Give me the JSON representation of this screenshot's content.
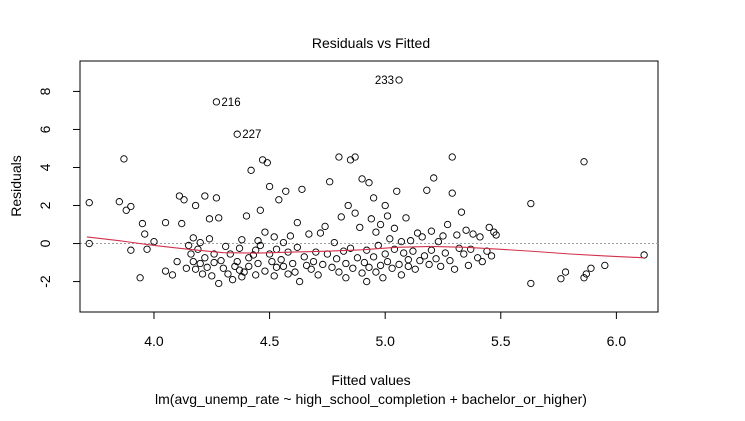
{
  "chart_data": {
    "type": "scatter",
    "title": "Residuals vs Fitted",
    "xlabel": "Fitted values",
    "subtitle": "lm(avg_unemp_rate ~ high_school_completion + bachelor_or_higher)",
    "ylabel": "Residuals",
    "xlim": [
      3.68,
      6.18
    ],
    "ylim": [
      -3.6,
      9.6
    ],
    "x_ticks": [
      4.0,
      4.5,
      5.0,
      5.5,
      6.0
    ],
    "x_tick_labels": [
      "4.0",
      "4.5",
      "5.0",
      "5.5",
      "6.0"
    ],
    "y_ticks": [
      -2,
      0,
      2,
      4,
      6,
      8
    ],
    "y_tick_labels": [
      "-2",
      "0",
      "2",
      "4",
      "6",
      "8"
    ],
    "reference_line": {
      "y": 0,
      "style": "dotted",
      "color": "#a0a0a0"
    },
    "smoother": {
      "color": "#d1314b",
      "x": [
        3.71,
        3.85,
        4.0,
        4.15,
        4.3,
        4.45,
        4.6,
        4.75,
        4.9,
        5.05,
        5.2,
        5.35,
        5.5,
        5.65,
        5.8,
        5.95,
        6.12
      ],
      "y": [
        0.35,
        0.15,
        -0.1,
        -0.3,
        -0.48,
        -0.5,
        -0.45,
        -0.4,
        -0.33,
        -0.2,
        -0.15,
        -0.2,
        -0.3,
        -0.42,
        -0.55,
        -0.65,
        -0.75
      ]
    },
    "annotations": [
      {
        "label": "233",
        "x": 5.06,
        "y": 8.6
      },
      {
        "label": "216",
        "x": 4.27,
        "y": 7.45
      },
      {
        "label": "227",
        "x": 4.36,
        "y": 5.75
      }
    ],
    "points": [
      [
        5.06,
        8.6
      ],
      [
        4.27,
        7.45
      ],
      [
        4.36,
        5.75
      ],
      [
        3.72,
        2.15
      ],
      [
        3.72,
        0.0
      ],
      [
        3.85,
        2.2
      ],
      [
        3.87,
        4.45
      ],
      [
        3.88,
        1.75
      ],
      [
        3.9,
        1.95
      ],
      [
        3.9,
        -0.35
      ],
      [
        3.94,
        -1.8
      ],
      [
        3.95,
        1.05
      ],
      [
        3.96,
        0.5
      ],
      [
        3.97,
        -0.3
      ],
      [
        4.0,
        0.1
      ],
      [
        4.05,
        1.1
      ],
      [
        4.05,
        -1.45
      ],
      [
        4.08,
        -1.65
      ],
      [
        4.1,
        -0.95
      ],
      [
        4.11,
        2.5
      ],
      [
        4.12,
        1.05
      ],
      [
        4.13,
        2.3
      ],
      [
        4.14,
        -1.3
      ],
      [
        4.15,
        -0.1
      ],
      [
        4.16,
        -0.55
      ],
      [
        4.17,
        0.3
      ],
      [
        4.17,
        -0.95
      ],
      [
        4.18,
        2.0
      ],
      [
        4.18,
        -1.35
      ],
      [
        4.19,
        -0.3
      ],
      [
        4.2,
        0.05
      ],
      [
        4.2,
        -1.05
      ],
      [
        4.21,
        -1.6
      ],
      [
        4.22,
        2.5
      ],
      [
        4.22,
        -0.75
      ],
      [
        4.23,
        -1.25
      ],
      [
        4.24,
        1.3
      ],
      [
        4.24,
        0.25
      ],
      [
        4.25,
        -1.7
      ],
      [
        4.26,
        -0.55
      ],
      [
        4.26,
        -1.0
      ],
      [
        4.27,
        2.4
      ],
      [
        4.28,
        -2.1
      ],
      [
        4.28,
        1.35
      ],
      [
        4.29,
        -0.9
      ],
      [
        4.3,
        -1.3
      ],
      [
        4.31,
        -0.15
      ],
      [
        4.32,
        -1.6
      ],
      [
        4.33,
        -0.55
      ],
      [
        4.34,
        -1.9
      ],
      [
        4.35,
        -1.2
      ],
      [
        4.36,
        -0.95
      ],
      [
        4.37,
        -1.4
      ],
      [
        4.37,
        -0.25
      ],
      [
        4.38,
        -1.75
      ],
      [
        4.38,
        0.2
      ],
      [
        4.39,
        -1.5
      ],
      [
        4.4,
        1.45
      ],
      [
        4.41,
        -0.75
      ],
      [
        4.41,
        -1.2
      ],
      [
        4.42,
        3.85
      ],
      [
        4.43,
        -0.6
      ],
      [
        4.44,
        -0.35
      ],
      [
        4.44,
        -1.65
      ],
      [
        4.45,
        -1.05
      ],
      [
        4.45,
        0.15
      ],
      [
        4.46,
        1.75
      ],
      [
        4.46,
        -0.1
      ],
      [
        4.47,
        4.4
      ],
      [
        4.48,
        -1.45
      ],
      [
        4.48,
        0.6
      ],
      [
        4.49,
        4.25
      ],
      [
        4.5,
        3.0
      ],
      [
        4.5,
        -0.55
      ],
      [
        4.51,
        -0.95
      ],
      [
        4.52,
        -1.7
      ],
      [
        4.52,
        0.35
      ],
      [
        4.53,
        -0.3
      ],
      [
        4.53,
        -1.25
      ],
      [
        4.54,
        2.3
      ],
      [
        4.55,
        -0.85
      ],
      [
        4.56,
        -1.2
      ],
      [
        4.56,
        0.05
      ],
      [
        4.57,
        2.75
      ],
      [
        4.58,
        -1.6
      ],
      [
        4.58,
        -0.45
      ],
      [
        4.59,
        0.4
      ],
      [
        4.6,
        -1.05
      ],
      [
        4.61,
        -1.5
      ],
      [
        4.62,
        -0.2
      ],
      [
        4.62,
        1.1
      ],
      [
        4.63,
        -2.0
      ],
      [
        4.64,
        2.85
      ],
      [
        4.65,
        -0.7
      ],
      [
        4.66,
        -1.15
      ],
      [
        4.67,
        0.5
      ],
      [
        4.68,
        -1.35
      ],
      [
        4.69,
        -0.95
      ],
      [
        4.7,
        -0.45
      ],
      [
        4.71,
        -1.65
      ],
      [
        4.72,
        0.55
      ],
      [
        4.73,
        -1.1
      ],
      [
        4.74,
        0.9
      ],
      [
        4.75,
        -0.55
      ],
      [
        4.76,
        3.25
      ],
      [
        4.77,
        -1.25
      ],
      [
        4.78,
        0.05
      ],
      [
        4.79,
        -0.8
      ],
      [
        4.8,
        4.55
      ],
      [
        4.8,
        -1.5
      ],
      [
        4.81,
        1.4
      ],
      [
        4.82,
        -0.4
      ],
      [
        4.83,
        -1.05
      ],
      [
        4.83,
        -1.8
      ],
      [
        4.84,
        2.0
      ],
      [
        4.85,
        4.4
      ],
      [
        4.85,
        -0.25
      ],
      [
        4.86,
        -1.3
      ],
      [
        4.87,
        1.6
      ],
      [
        4.87,
        4.55
      ],
      [
        4.88,
        -0.75
      ],
      [
        4.89,
        0.85
      ],
      [
        4.9,
        -1.55
      ],
      [
        4.9,
        3.4
      ],
      [
        4.91,
        -1.0
      ],
      [
        4.92,
        -2.0
      ],
      [
        4.92,
        -0.35
      ],
      [
        4.93,
        3.2
      ],
      [
        4.93,
        -1.25
      ],
      [
        4.94,
        1.3
      ],
      [
        4.95,
        -0.7
      ],
      [
        4.95,
        2.4
      ],
      [
        4.96,
        -1.5
      ],
      [
        4.96,
        0.6
      ],
      [
        4.97,
        -0.1
      ],
      [
        4.98,
        -1.15
      ],
      [
        4.98,
        1.0
      ],
      [
        4.99,
        -1.8
      ],
      [
        5.0,
        2.0
      ],
      [
        5.0,
        -0.55
      ],
      [
        5.01,
        -0.95
      ],
      [
        5.01,
        1.45
      ],
      [
        5.02,
        0.25
      ],
      [
        5.03,
        -1.3
      ],
      [
        5.04,
        -0.3
      ],
      [
        5.04,
        0.8
      ],
      [
        5.05,
        2.75
      ],
      [
        5.06,
        -1.1
      ],
      [
        5.07,
        0.1
      ],
      [
        5.07,
        -1.65
      ],
      [
        5.08,
        -0.5
      ],
      [
        5.09,
        1.35
      ],
      [
        5.1,
        -0.85
      ],
      [
        5.1,
        -1.2
      ],
      [
        5.11,
        0.15
      ],
      [
        5.12,
        -0.4
      ],
      [
        5.13,
        -1.35
      ],
      [
        5.14,
        0.55
      ],
      [
        5.15,
        -0.9
      ],
      [
        5.16,
        0.35
      ],
      [
        5.17,
        -0.65
      ],
      [
        5.18,
        2.8
      ],
      [
        5.19,
        -1.1
      ],
      [
        5.2,
        0.65
      ],
      [
        5.2,
        -0.35
      ],
      [
        5.21,
        3.45
      ],
      [
        5.22,
        -0.8
      ],
      [
        5.23,
        0.1
      ],
      [
        5.24,
        -1.2
      ],
      [
        5.25,
        0.4
      ],
      [
        5.26,
        -0.5
      ],
      [
        5.27,
        1.0
      ],
      [
        5.28,
        -0.9
      ],
      [
        5.29,
        2.65
      ],
      [
        5.29,
        4.55
      ],
      [
        5.3,
        -1.35
      ],
      [
        5.31,
        0.45
      ],
      [
        5.32,
        -0.25
      ],
      [
        5.33,
        1.65
      ],
      [
        5.34,
        -0.55
      ],
      [
        5.35,
        0.7
      ],
      [
        5.36,
        -1.15
      ],
      [
        5.37,
        -0.3
      ],
      [
        5.38,
        0.5
      ],
      [
        5.4,
        -0.75
      ],
      [
        5.41,
        0.35
      ],
      [
        5.42,
        -0.95
      ],
      [
        5.44,
        -0.4
      ],
      [
        5.45,
        0.85
      ],
      [
        5.46,
        -0.65
      ],
      [
        5.47,
        0.6
      ],
      [
        5.48,
        0.45
      ],
      [
        5.63,
        2.1
      ],
      [
        5.63,
        -2.1
      ],
      [
        5.76,
        -1.85
      ],
      [
        5.78,
        -1.5
      ],
      [
        5.86,
        4.3
      ],
      [
        5.86,
        -1.8
      ],
      [
        5.87,
        -1.6
      ],
      [
        5.89,
        -1.3
      ],
      [
        5.95,
        -1.15
      ],
      [
        6.12,
        -0.6
      ]
    ]
  }
}
